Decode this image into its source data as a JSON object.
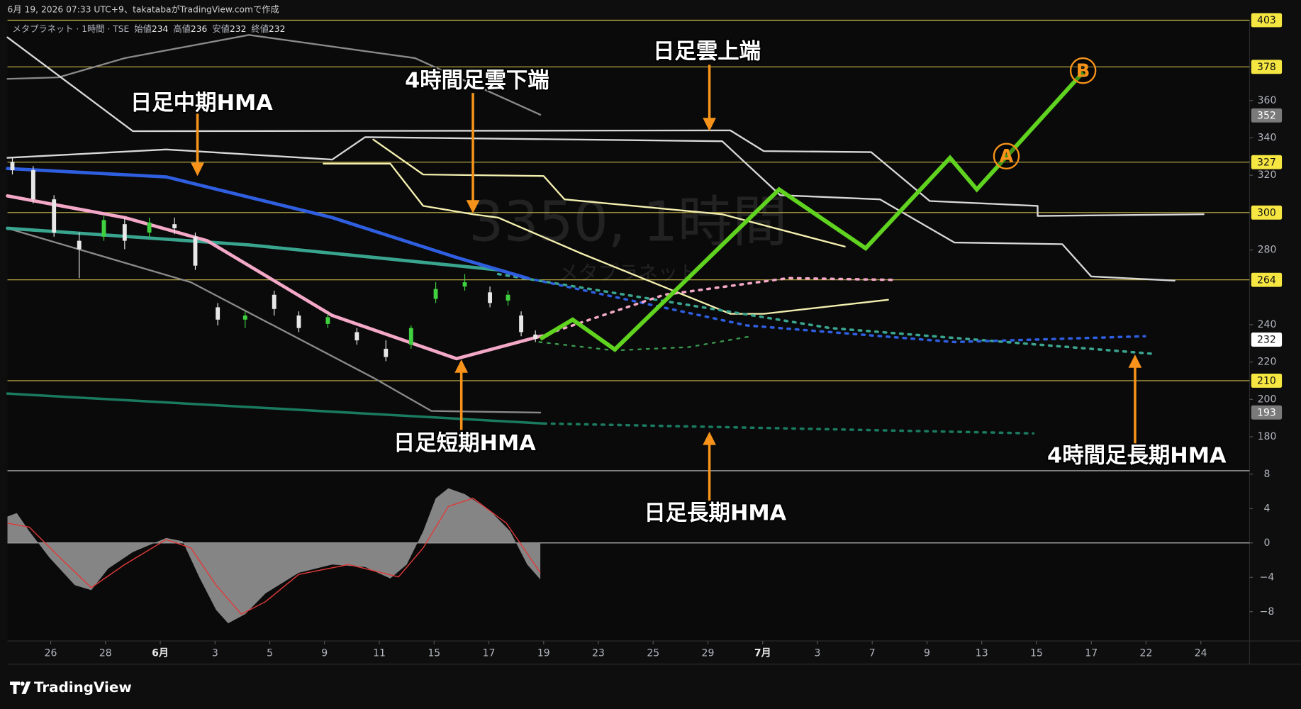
{
  "header": "6月 19, 2026 07:33 UTC+9、takatabaがTradingView.comで作成",
  "brand": "TradingView",
  "chart_data": [
    {
      "type": "candlestick",
      "symbol_legend": {
        "symbol": "メタプラネット · 1時間 · TSE",
        "items": [
          {
            "label": "始値",
            "value": 234
          },
          {
            "label": "高値",
            "value": 236
          },
          {
            "label": "安値",
            "value": 232
          },
          {
            "label": "終値",
            "value": 232
          }
        ]
      },
      "watermark": [
        "3350, 1時間",
        "メタプラネット"
      ],
      "xlim": [
        -0.79,
        21.89
      ],
      "xticks": [
        {
          "value": 0,
          "label": "26"
        },
        {
          "value": 1,
          "label": "28"
        },
        {
          "value": 2,
          "label": "6月"
        },
        {
          "value": 3,
          "label": "3"
        },
        {
          "value": 4,
          "label": "5"
        },
        {
          "value": 5,
          "label": "9"
        },
        {
          "value": 6,
          "label": "11"
        },
        {
          "value": 7,
          "label": "15"
        },
        {
          "value": 8,
          "label": "17"
        },
        {
          "value": 9,
          "label": "19"
        },
        {
          "value": 10,
          "label": "23"
        },
        {
          "value": 11,
          "label": "25"
        },
        {
          "value": 12,
          "label": "29"
        },
        {
          "value": 13,
          "label": "7月"
        },
        {
          "value": 14,
          "label": "3"
        },
        {
          "value": 15,
          "label": "7"
        },
        {
          "value": 16,
          "label": "9"
        },
        {
          "value": 17,
          "label": "13"
        },
        {
          "value": 18,
          "label": "15"
        },
        {
          "value": 19,
          "label": "17"
        },
        {
          "value": 20,
          "label": "22"
        },
        {
          "value": 21,
          "label": "24"
        }
      ],
      "ylim": [
        161.8,
        402.7
      ],
      "yticks": [
        360,
        340,
        320,
        280,
        240,
        220,
        200,
        180
      ],
      "hlines": {
        "color": "#c9b84a",
        "values": [
          403,
          378,
          327,
          300,
          264,
          210
        ]
      },
      "price_labels": [
        {
          "value": 403,
          "color": "#f5e642"
        },
        {
          "value": 378,
          "color": "#f5e642"
        },
        {
          "value": 352,
          "color": "#7a7a7a"
        },
        {
          "value": 327,
          "color": "#f5e642"
        },
        {
          "value": 300,
          "color": "#f5e642"
        },
        {
          "value": 264,
          "color": "#f5e642"
        },
        {
          "value": 232,
          "color": "#ffffff"
        },
        {
          "value": 210,
          "color": "#f5e642"
        },
        {
          "value": 193,
          "color": "#7a7a7a"
        }
      ],
      "series": [
        {
          "color": "#8a8a8a",
          "width": 2,
          "x": [
            -0.79,
            0.14,
            1.35,
            3.62,
            6.65,
            8.94
          ],
          "values": [
            371.6,
            372.4,
            382.7,
            395.1,
            382.7,
            352.4
          ]
        },
        {
          "color": "#8a8a8a",
          "width": 2,
          "x": [
            -0.79,
            2.56,
            5.89,
            6.95,
            8.94
          ],
          "values": [
            291.6,
            262.7,
            211.6,
            193.8,
            192.9
          ]
        },
        {
          "color": "#d8d8d8",
          "width": 2,
          "x": [
            -0.79,
            1.5,
            12.41,
            13.02,
            14.98,
            16.05,
            18.02,
            18.02,
            21.05
          ],
          "values": [
            393.8,
            343.6,
            344,
            332.9,
            332.4,
            306.2,
            303.6,
            298.2,
            299.1
          ]
        },
        {
          "color": "#d8d8d8",
          "width": 2,
          "x": [
            -0.79,
            2.11,
            5.14,
            5.74,
            12.26,
            13.32,
            15.14,
            16.5,
            18.47,
            19.0,
            20.52
          ],
          "values": [
            329.3,
            333.8,
            328.4,
            340.4,
            338.2,
            309.3,
            307.1,
            284,
            283.1,
            265.8,
            263.6
          ]
        },
        {
          "color": "#f5f0b0",
          "width": 2,
          "x": [
            4.98,
            6.2,
            6.8,
            7.71,
            8.17,
            9.68,
            12.41,
            13.02,
            15.29
          ],
          "values": [
            326.2,
            326.2,
            303.6,
            299.1,
            297.3,
            278.2,
            245.8,
            245.8,
            253.3
          ]
        },
        {
          "color": "#f5f0b0",
          "width": 2,
          "x": [
            5.89,
            6.8,
            9.0,
            9.38,
            12.26,
            14.5
          ],
          "values": [
            339.1,
            320.4,
            319.6,
            307.1,
            299.1,
            281.8
          ]
        },
        {
          "color": "#1a7a60",
          "width": 3,
          "x": [
            -0.79,
            9.0
          ],
          "values": [
            203.1,
            187.1
          ]
        },
        {
          "color": "#1a7a60",
          "width": 3,
          "dashed": true,
          "x": [
            9.0,
            17.94
          ],
          "values": [
            187.1,
            181.8
          ]
        },
        {
          "color": "#3aa58f",
          "width": 4,
          "x": [
            -0.79,
            3.62,
            8.17
          ],
          "values": [
            291.6,
            282.7,
            269.3
          ]
        },
        {
          "color": "#3aa58f",
          "width": 3,
          "dashed": true,
          "x": [
            8.17,
            14.23,
            20.14
          ],
          "values": [
            267.1,
            238.2,
            224.4
          ]
        },
        {
          "color": "#2f5fe0",
          "width": 4,
          "x": [
            -0.79,
            2.11,
            5.14,
            7.41,
            8.7
          ],
          "values": [
            323.6,
            319.1,
            297.3,
            276,
            264.9
          ]
        },
        {
          "color": "#2f5fe0",
          "width": 3,
          "dashed": true,
          "x": [
            8.7,
            12.71,
            16.5,
            19.98
          ],
          "values": [
            264.9,
            239.6,
            230.7,
            233.8
          ]
        },
        {
          "color": "#f4a8c8",
          "width": 4,
          "x": [
            -0.79,
            1.35,
            2.86,
            5.14,
            7.41,
            8.94
          ],
          "values": [
            308.9,
            297.3,
            284.9,
            244.9,
            221.8,
            233.8
          ]
        },
        {
          "color": "#f4a8c8",
          "width": 3,
          "dashed": true,
          "x": [
            8.94,
            11.2,
            13.47,
            15.36
          ],
          "values": [
            233.8,
            256,
            264.9,
            264
          ]
        },
        {
          "color": "#3a9a50",
          "width": 2,
          "dashed": true,
          "x": [
            8.92,
            10.29,
            11.65,
            12.79
          ],
          "values": [
            230.7,
            226.2,
            228,
            233.8
          ]
        }
      ],
      "candles": {
        "up_color": "#3fd13f",
        "down_color": "#e8e8e8",
        "x": [
          -0.7,
          -0.32,
          0.06,
          0.52,
          0.97,
          1.35,
          1.8,
          2.26,
          2.64,
          3.05,
          3.55,
          4.08,
          4.53,
          5.06,
          5.59,
          6.12,
          6.58,
          7.03,
          7.56,
          8.02,
          8.35,
          8.59,
          8.85
        ],
        "open": [
          327.1,
          322.7,
          307.1,
          284.9,
          287.1,
          293.8,
          289.3,
          293.8,
          287.1,
          249.3,
          242.7,
          256,
          244.9,
          240.4,
          236,
          227.1,
          229.3,
          253.8,
          260.4,
          257.3,
          252.9,
          244.9,
          234.7
        ],
        "high": [
          329.3,
          324.9,
          309.3,
          289.3,
          298.2,
          297.3,
          297.3,
          297.3,
          289.3,
          251.6,
          247.1,
          258.2,
          247.1,
          245.8,
          238.2,
          231.6,
          239.6,
          262.7,
          267.1,
          260.4,
          258.2,
          247.1,
          236.9
        ],
        "low": [
          320.4,
          304.9,
          287.1,
          264.9,
          284.9,
          280.4,
          287.1,
          288.4,
          269.3,
          239.6,
          238.2,
          244.9,
          236,
          238.2,
          229.3,
          220.4,
          227.1,
          251.6,
          258.2,
          249.3,
          250.2,
          233.8,
          230.7
        ],
        "close": [
          322.7,
          307.1,
          289.3,
          280.4,
          296,
          284.9,
          294.7,
          291.6,
          271.6,
          242.7,
          244.9,
          248.4,
          238.2,
          244,
          231.6,
          222.7,
          238.2,
          259.1,
          262.7,
          251.6,
          256,
          236,
          232.4
        ]
      },
      "forecast": {
        "color": "#5fd31f",
        "width": 5,
        "x": [
          8.94,
          9.53,
          10.3,
          13.3,
          14.88,
          16.42,
          16.91,
          18.85
        ],
        "values": [
          232.4,
          242.7,
          226.7,
          312.4,
          280.9,
          329.3,
          312.4,
          375.1
        ]
      },
      "markers": [
        {
          "label": "A",
          "color": "#f7931a",
          "x": 17.45,
          "value": 330.2
        },
        {
          "label": "B",
          "color": "#f7931a",
          "x": 18.85,
          "value": 376
        }
      ],
      "annotations": [
        {
          "text": "日足中期HMA"
        },
        {
          "text": "4時間足雲下端"
        },
        {
          "text": "日足雲上端"
        },
        {
          "text": "日足短期HMA"
        },
        {
          "text": "日足長期HMA"
        },
        {
          "text": "4時間足長期HMA"
        }
      ]
    },
    {
      "type": "area",
      "xlim": [
        -0.79,
        21.89
      ],
      "ylim": [
        -11.4,
        8.4
      ],
      "yticks": [
        8,
        4,
        0,
        {
          "value": -4,
          "label": "−4"
        },
        {
          "value": -8,
          "label": "−8"
        }
      ],
      "zero_line": true,
      "series": [
        {
          "color": "#8c8c8c",
          "fill": true,
          "x": [
            -0.79,
            -0.62,
            -0.39,
            -0.02,
            0.44,
            0.74,
            1.05,
            1.5,
            2.11,
            2.41,
            2.71,
            3.02,
            3.24,
            3.55,
            3.92,
            4.53,
            5.14,
            5.74,
            6.2,
            6.5,
            6.8,
            7.03,
            7.26,
            7.56,
            8.02,
            8.39,
            8.7,
            8.94
          ],
          "values": [
            3.08,
            3.47,
            1.35,
            -1.73,
            -4.92,
            -5.49,
            -2.99,
            -1.06,
            0.58,
            0.19,
            -3.95,
            -7.81,
            -9.35,
            -8.29,
            -5.88,
            -3.47,
            -2.51,
            -2.8,
            -4.14,
            -2.51,
            1.35,
            5.2,
            6.36,
            5.69,
            3.76,
            1.35,
            -2.51,
            -4.24
          ]
        },
        {
          "color": "#e03a3a",
          "x": [
            -0.79,
            -0.39,
            0.14,
            0.74,
            1.35,
            2.11,
            2.56,
            3.02,
            3.48,
            3.92,
            4.53,
            5.44,
            6.35,
            6.8,
            7.26,
            7.71,
            8.32,
            8.94
          ],
          "values": [
            2.31,
            1.83,
            -1.54,
            -5.2,
            -2.51,
            0.39,
            -0.58,
            -4.92,
            -8.29,
            -6.84,
            -3.66,
            -2.51,
            -3.95,
            -0.58,
            4.24,
            5.2,
            2.31,
            -3.47
          ]
        }
      ]
    }
  ]
}
